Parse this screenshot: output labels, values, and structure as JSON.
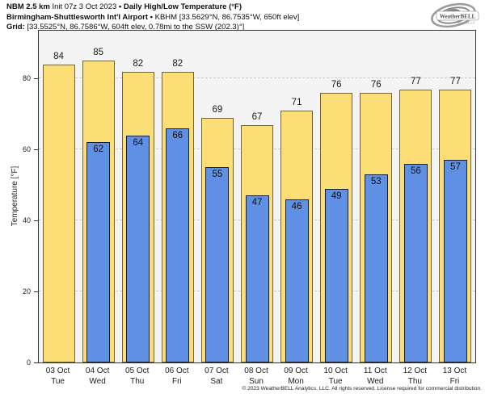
{
  "header": {
    "line1_bold": "NBM 2.5 km",
    "line1_text": "Init 07z 3 Oct 2023",
    "line1_sep": "•",
    "line1_bold2": "Daily High/Low Temperature (°F)",
    "line2_bold": "Birmingham-Shuttlesworth Int'l Airport",
    "line2_sep": "•",
    "line2_text": "KBHM [33.5629°N, 86.7535°W, 650ft elev]",
    "line3_bold": "Grid:",
    "line3_text": "[33.5525°N, 86.7586°W, 604ft elev, 0.78mi to the SSW (202.3)°]"
  },
  "logo": {
    "brand": "WeatherBELL",
    "sub": "Analytics LLC"
  },
  "chart_data": {
    "type": "bar",
    "title": "Daily High/Low Temperature (°F)",
    "categories": [
      {
        "date": "03 Oct",
        "day": "Tue"
      },
      {
        "date": "04 Oct",
        "day": "Wed"
      },
      {
        "date": "05 Oct",
        "day": "Thu"
      },
      {
        "date": "06 Oct",
        "day": "Fri"
      },
      {
        "date": "07 Oct",
        "day": "Sat"
      },
      {
        "date": "08 Oct",
        "day": "Sun"
      },
      {
        "date": "09 Oct",
        "day": "Mon"
      },
      {
        "date": "10 Oct",
        "day": "Tue"
      },
      {
        "date": "11 Oct",
        "day": "Wed"
      },
      {
        "date": "12 Oct",
        "day": "Thu"
      },
      {
        "date": "13 Oct",
        "day": "Fri"
      }
    ],
    "series": [
      {
        "name": "Daily High",
        "color": "#FBDF76",
        "values": [
          84,
          85,
          82,
          82,
          69,
          67,
          71,
          76,
          76,
          77,
          77
        ]
      },
      {
        "name": "Daily Low",
        "color": "#6090E4",
        "values": [
          null,
          62,
          64,
          66,
          55,
          47,
          46,
          49,
          53,
          56,
          57
        ]
      }
    ],
    "ylabel": "Temperature [°F]",
    "yticks": [
      0,
      20,
      40,
      60,
      80
    ],
    "ylim": [
      0,
      93.5
    ],
    "grid": "horizontal-dashed",
    "legend": "none",
    "plot_bg": "#F4F4F4",
    "grid_color": "#CCCCCC",
    "spine_color": "#333333"
  },
  "footer": {
    "copyright": "© 2023 WeatherBELL Analytics, LLC. All rights reserved. License required for commercial distribution."
  }
}
